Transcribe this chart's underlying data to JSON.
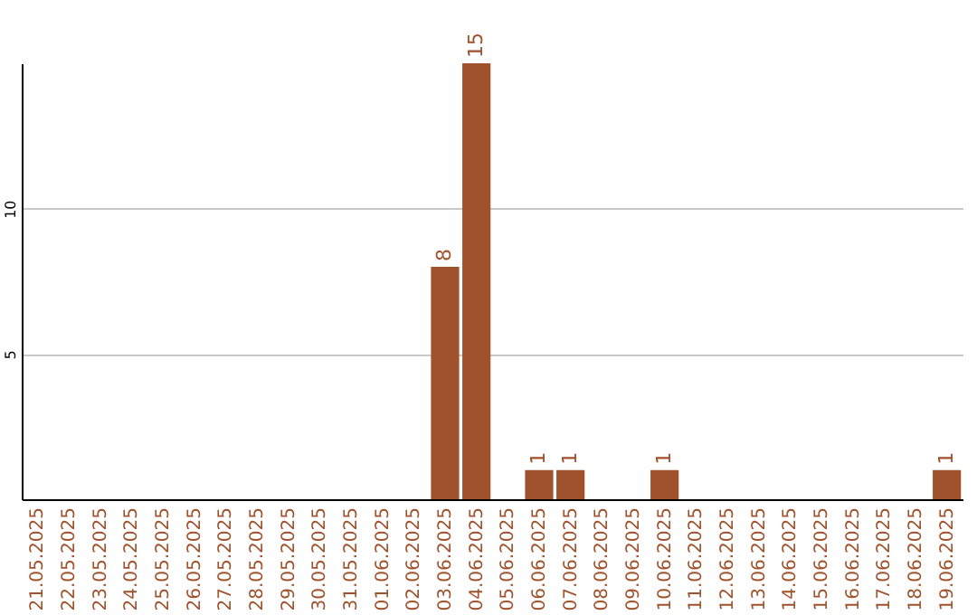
{
  "chart_data": {
    "type": "bar",
    "categories": [
      "21.05.2025",
      "22.05.2025",
      "23.05.2025",
      "24.05.2025",
      "25.05.2025",
      "26.05.2025",
      "27.05.2025",
      "28.05.2025",
      "29.05.2025",
      "30.05.2025",
      "31.05.2025",
      "01.06.2025",
      "02.06.2025",
      "03.06.2025",
      "04.06.2025",
      "05.06.2025",
      "06.06.2025",
      "07.06.2025",
      "08.06.2025",
      "09.06.2025",
      "10.06.2025",
      "11.06.2025",
      "12.06.2025",
      "13.06.2025",
      "14.06.2025",
      "15.06.2025",
      "16.06.2025",
      "17.06.2025",
      "18.06.2025",
      "19.06.2025"
    ],
    "values": [
      0,
      0,
      0,
      0,
      0,
      0,
      0,
      0,
      0,
      0,
      0,
      0,
      0,
      8,
      15,
      0,
      1,
      1,
      0,
      0,
      1,
      0,
      0,
      0,
      0,
      0,
      0,
      0,
      0,
      1
    ],
    "value_labels": [
      null,
      null,
      null,
      null,
      null,
      null,
      null,
      null,
      null,
      null,
      null,
      null,
      null,
      "8",
      "15",
      null,
      "1",
      "1",
      null,
      null,
      "1",
      null,
      null,
      null,
      null,
      null,
      null,
      null,
      null,
      "1"
    ],
    "color": "#a0522d",
    "ylim": [
      0,
      15
    ],
    "yticks": [
      5,
      10
    ],
    "grid": "y"
  }
}
